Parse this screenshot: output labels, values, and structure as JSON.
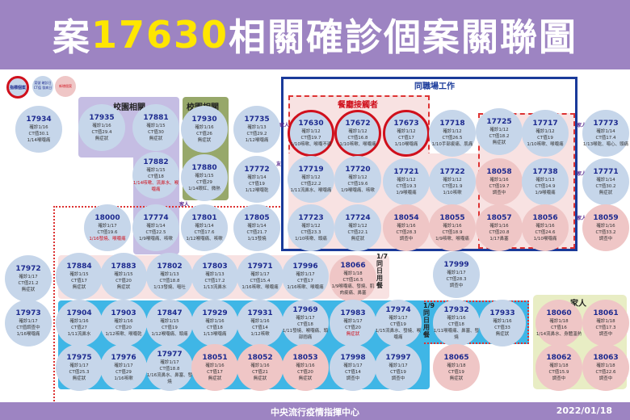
{
  "header": {
    "prefix": "案",
    "case": "17630",
    "suffix": "相關確診個案關聯圖"
  },
  "footer": {
    "agency": "中央流行疫情指揮中心",
    "date": "2022/01/18"
  },
  "legend": {
    "index_case": "指標個案",
    "case_info": "案號 確診日 CT值 發病日",
    "new_case": "新增個案"
  },
  "groups": {
    "campus1": "校園相關",
    "campus2": "校園相關",
    "workplace": "同職場工作",
    "restaurant": "餐廳接觸者",
    "meal17": "1/7同日用餐",
    "meal19": "1/9同日用餐",
    "family": "家人"
  },
  "edges": {
    "e1": "家人",
    "e2": "友",
    "e3": "家人",
    "e4": "家人",
    "e5": "家人",
    "e6": "家人"
  },
  "colors": {
    "blue_case": "#c6d6ea",
    "new_case": "#efc6c6",
    "id_text": "#1d2a8f",
    "index_ring": "#d0101c",
    "workplace_border": "#1a3a9a",
    "campus_purple": "#c5bde3",
    "campus_green": "#97a86a",
    "meal_cyan": "#3fb6e6",
    "family_bg": "#e8edc4"
  },
  "nodes": [
    {
      "id": "17934",
      "l": [
        "確診1/16",
        "CT值30.1",
        "1/14喉嚨痛"
      ]
    },
    {
      "id": "17935",
      "l": [
        "確診1/16",
        "CT值29.4",
        "無症狀"
      ]
    },
    {
      "id": "17881",
      "l": [
        "確診1/15",
        "CT值30",
        "無症狀"
      ]
    },
    {
      "id": "17930",
      "l": [
        "確診1/16",
        "CT值26",
        "無症狀"
      ]
    },
    {
      "id": "17735",
      "l": [
        "確診1/13",
        "CT值29.2",
        "1/12喉嚨痛"
      ]
    },
    {
      "id": "17630",
      "l": [
        "確診1/12",
        "CT值19.7",
        "1/10咳嗽、喉嚨不適"
      ],
      "ring": true
    },
    {
      "id": "17672",
      "l": [
        "確診1/12",
        "CT值16.8",
        "1/10咳嗽、喉嚨痛"
      ],
      "ring": true
    },
    {
      "id": "17673",
      "l": [
        "確診1/12",
        "CT值17",
        "1/10喉嚨痛"
      ],
      "ring": true
    },
    {
      "id": "17718",
      "l": [
        "確診1/12",
        "CT值26.5",
        "1/10手部痠痛、肌痛"
      ]
    },
    {
      "id": "17725",
      "l": [
        "確診1/12",
        "CT值18.2",
        "無症狀"
      ]
    },
    {
      "id": "17717",
      "l": [
        "確診1/12",
        "CT值19",
        "1/10咳嗽、喉嚨痛"
      ]
    },
    {
      "id": "17773",
      "l": [
        "確診1/14",
        "CT值17.4",
        "1/13喉乾、噁心、頭痛"
      ]
    },
    {
      "id": "17882",
      "l": [
        "確診1/15",
        "CT值18"
      ],
      "note": "1/14咳嗽、流鼻水、喉嚨痛"
    },
    {
      "id": "17880",
      "l": [
        "確診1/15",
        "CT值29",
        "1/14眼紅、微熱"
      ]
    },
    {
      "id": "17772",
      "l": [
        "確診1/14",
        "CT值19",
        "1/12喉嚨乾"
      ]
    },
    {
      "id": "17719",
      "l": [
        "確診1/12",
        "CT值22.2",
        "1/11流鼻水、喉嚨痛"
      ]
    },
    {
      "id": "17720",
      "l": [
        "確診1/12",
        "CT值19.6",
        "1/9喉嚨痛、咳嗽"
      ]
    },
    {
      "id": "17721",
      "l": [
        "確診1/12",
        "CT值19.3",
        "1/9喉嚨痛"
      ]
    },
    {
      "id": "17722",
      "l": [
        "確診1/12",
        "CT值21.9",
        "1/10咳嗽"
      ]
    },
    {
      "id": "18058",
      "l": [
        "確診1/16",
        "CT值19.7",
        "調查中"
      ],
      "new": true
    },
    {
      "id": "17738",
      "l": [
        "確診1/13",
        "CT值14.9",
        "1/9喉嚨痛"
      ]
    },
    {
      "id": "17771",
      "l": [
        "確診1/14",
        "CT值30.2",
        "無症狀"
      ]
    },
    {
      "id": "18000",
      "l": [
        "確診1/17",
        "CT值19.6"
      ],
      "note": "1/16發燒、喉嚨痛"
    },
    {
      "id": "17774",
      "l": [
        "確診1/14",
        "CT值22.5",
        "1/9喉嚨痛、咳嗽"
      ]
    },
    {
      "id": "17801",
      "l": [
        "確診1/14",
        "CT值17.6",
        "1/12喉嚨痛、咳嗽"
      ]
    },
    {
      "id": "17805",
      "l": [
        "確診1/14",
        "CT值21.7",
        "1/13發燒"
      ]
    },
    {
      "id": "17723",
      "l": [
        "確診1/12",
        "CT值23.3",
        "1/10咳嗽、頭痛"
      ]
    },
    {
      "id": "17724",
      "l": [
        "確診1/12",
        "CT值22.1",
        "無症狀"
      ]
    },
    {
      "id": "18054",
      "l": [
        "確診1/16",
        "CT值28.3",
        "調查中"
      ],
      "new": true
    },
    {
      "id": "18055",
      "l": [
        "確診1/16",
        "CT值18.9",
        "1/9咳嗽、喉嚨痛"
      ],
      "new": true
    },
    {
      "id": "18057",
      "l": [
        "確診1/16",
        "CT值20.8",
        "1/17鼻塞"
      ],
      "new": true
    },
    {
      "id": "18056",
      "l": [
        "確診1/16",
        "CT值24.6",
        "1/10喉嚨痛"
      ],
      "new": true
    },
    {
      "id": "18059",
      "l": [
        "確診1/16",
        "CT值33.2",
        "調查中"
      ],
      "new": true
    },
    {
      "id": "17972",
      "l": [
        "確診1/17",
        "CT值21.2",
        "無症狀"
      ]
    },
    {
      "id": "17884",
      "l": [
        "確診1/15",
        "CT值17",
        "無症狀"
      ]
    },
    {
      "id": "17883",
      "l": [
        "確診1/15",
        "CT值20",
        "無症狀"
      ]
    },
    {
      "id": "17802",
      "l": [
        "確診1/13",
        "CT值18.8",
        "1/13發燒、嘔吐"
      ]
    },
    {
      "id": "17803",
      "l": [
        "確診1/13",
        "CT值17.2",
        "1/13流鼻水"
      ]
    },
    {
      "id": "17971",
      "l": [
        "確診1/17",
        "CT值15.4",
        "1/16咳嗽、喉嚨痛"
      ]
    },
    {
      "id": "17996",
      "l": [
        "確診1/17",
        "CT值17",
        "1/16咳嗽、喉嚨痛"
      ]
    },
    {
      "id": "18066",
      "l": [
        "確診1/18",
        "CT值16.5",
        "1/9喉嚨痛、發燒、肌肉痠痛、鼻塞"
      ],
      "new": true
    },
    {
      "id": "17999",
      "l": [
        "確診1/17",
        "CT值28.3",
        "調查中"
      ]
    },
    {
      "id": "17973",
      "l": [
        "確診1/17",
        "CT值調查中",
        "1/16喉嚨痛"
      ]
    },
    {
      "id": "17904",
      "l": [
        "確診1/16",
        "CT值27",
        "1/11流鼻水"
      ]
    },
    {
      "id": "17903",
      "l": [
        "確診1/16",
        "CT值20",
        "1/12咳嗽、喉嚨乾"
      ]
    },
    {
      "id": "17847",
      "l": [
        "確診1/15",
        "CT值19",
        "1/12喉嚨痛、頭痛"
      ]
    },
    {
      "id": "17929",
      "l": [
        "確診1/16",
        "CT值18",
        "1/13喉嚨痛"
      ]
    },
    {
      "id": "17931",
      "l": [
        "確診1/16",
        "CT值14",
        "1/12咳嗽"
      ]
    },
    {
      "id": "17969",
      "l": [
        "確診1/17",
        "CT值18",
        "1/11發燒、喉嚨痛、頭部悶痛"
      ]
    },
    {
      "id": "17983",
      "l": [
        "確診1/17",
        "CT值20"
      ],
      "note": "無症狀"
    },
    {
      "id": "17974",
      "l": [
        "確診1/17",
        "CT值19",
        "1/15流鼻水、發燒、喉嚨痛"
      ]
    },
    {
      "id": "17932",
      "l": [
        "確診1/16",
        "CT值18",
        "1/11喉嚨痛、鼻塞、發燒"
      ]
    },
    {
      "id": "17933",
      "l": [
        "確診1/16",
        "CT值33",
        "無症狀"
      ]
    },
    {
      "id": "18060",
      "l": [
        "確診1/18",
        "CT值16",
        "1/14流鼻水、身體溫熱"
      ],
      "new": true
    },
    {
      "id": "18061",
      "l": [
        "確診1/18",
        "CT值17.3",
        "調查中"
      ],
      "new": true
    },
    {
      "id": "17975",
      "l": [
        "確診1/17",
        "CT值25.3",
        "無症狀"
      ]
    },
    {
      "id": "17976",
      "l": [
        "確診1/17",
        "CT值29",
        "1/16咳嗽"
      ]
    },
    {
      "id": "17977",
      "l": [
        "確診1/17",
        "CT值18.8",
        "1/16流鼻水、鼻塞、發燒"
      ]
    },
    {
      "id": "18051",
      "l": [
        "確診1/16",
        "CT值17",
        "無症狀"
      ],
      "new": true
    },
    {
      "id": "18052",
      "l": [
        "確診1/16",
        "CT值21",
        "無症狀"
      ],
      "new": true
    },
    {
      "id": "18053",
      "l": [
        "確診1/16",
        "CT值20",
        "無症狀"
      ],
      "new": true
    },
    {
      "id": "17998",
      "l": [
        "確診1/17",
        "CT值14",
        "調查中"
      ]
    },
    {
      "id": "17997",
      "l": [
        "確診1/17",
        "CT值19",
        "調查中"
      ]
    },
    {
      "id": "18065",
      "l": [
        "確診1/18",
        "CT值19",
        "無症狀"
      ],
      "new": true
    },
    {
      "id": "18062",
      "l": [
        "確診1/18",
        "CT值15.9",
        "調查中"
      ],
      "new": true
    },
    {
      "id": "18063",
      "l": [
        "確診1/18",
        "CT值22.6",
        "調查中"
      ],
      "new": true
    }
  ]
}
